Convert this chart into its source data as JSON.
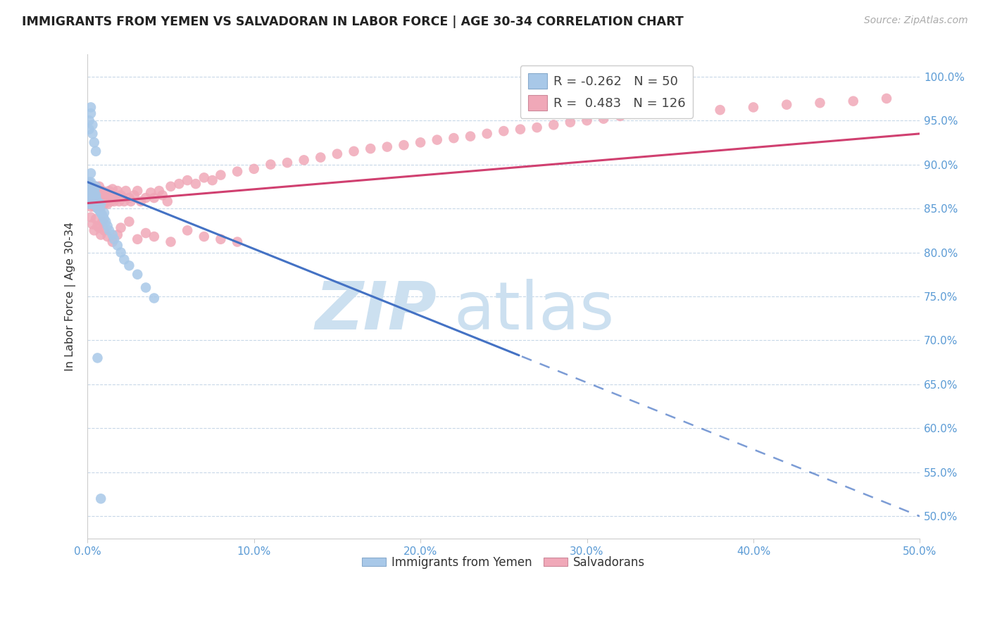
{
  "title": "IMMIGRANTS FROM YEMEN VS SALVADORAN IN LABOR FORCE | AGE 30-34 CORRELATION CHART",
  "source": "Source: ZipAtlas.com",
  "ylabel": "In Labor Force | Age 30-34",
  "xlim": [
    0.0,
    0.5
  ],
  "ylim": [
    0.475,
    1.025
  ],
  "xtick_labels": [
    "0.0%",
    "10.0%",
    "20.0%",
    "30.0%",
    "40.0%",
    "50.0%"
  ],
  "xtick_vals": [
    0.0,
    0.1,
    0.2,
    0.3,
    0.4,
    0.5
  ],
  "ytick_labels": [
    "50.0%",
    "55.0%",
    "60.0%",
    "65.0%",
    "70.0%",
    "75.0%",
    "80.0%",
    "85.0%",
    "90.0%",
    "95.0%",
    "100.0%"
  ],
  "ytick_vals": [
    0.5,
    0.55,
    0.6,
    0.65,
    0.7,
    0.75,
    0.8,
    0.85,
    0.9,
    0.95,
    1.0
  ],
  "legend_R1": "-0.262",
  "legend_N1": "50",
  "legend_R2": "0.483",
  "legend_N2": "126",
  "color_yemen": "#a8c8e8",
  "color_salvadoran": "#f0a8b8",
  "line_color_yemen": "#4472c4",
  "line_color_salvadoran": "#d04070",
  "watermark_color": "#cce0f0",
  "yemen_x": [
    0.001,
    0.001,
    0.001,
    0.001,
    0.001,
    0.002,
    0.002,
    0.002,
    0.002,
    0.003,
    0.003,
    0.003,
    0.004,
    0.004,
    0.004,
    0.005,
    0.005,
    0.005,
    0.005,
    0.006,
    0.006,
    0.007,
    0.007,
    0.008,
    0.008,
    0.009,
    0.01,
    0.01,
    0.011,
    0.012,
    0.013,
    0.015,
    0.016,
    0.018,
    0.02,
    0.022,
    0.025,
    0.03,
    0.035,
    0.04,
    0.001,
    0.001,
    0.002,
    0.002,
    0.003,
    0.003,
    0.004,
    0.005,
    0.006,
    0.008
  ],
  "yemen_y": [
    0.87,
    0.86,
    0.88,
    0.855,
    0.865,
    0.87,
    0.86,
    0.88,
    0.89,
    0.855,
    0.87,
    0.86,
    0.855,
    0.865,
    0.87,
    0.855,
    0.862,
    0.875,
    0.865,
    0.85,
    0.858,
    0.848,
    0.852,
    0.845,
    0.855,
    0.842,
    0.838,
    0.845,
    0.835,
    0.83,
    0.825,
    0.82,
    0.815,
    0.808,
    0.8,
    0.792,
    0.785,
    0.775,
    0.76,
    0.748,
    0.95,
    0.94,
    0.965,
    0.958,
    0.945,
    0.935,
    0.925,
    0.915,
    0.68,
    0.52
  ],
  "salv_x": [
    0.001,
    0.001,
    0.001,
    0.001,
    0.001,
    0.001,
    0.002,
    0.002,
    0.002,
    0.002,
    0.002,
    0.003,
    0.003,
    0.003,
    0.003,
    0.003,
    0.004,
    0.004,
    0.004,
    0.004,
    0.005,
    0.005,
    0.005,
    0.005,
    0.006,
    0.006,
    0.006,
    0.007,
    0.007,
    0.007,
    0.008,
    0.008,
    0.008,
    0.009,
    0.009,
    0.01,
    0.01,
    0.011,
    0.011,
    0.012,
    0.012,
    0.013,
    0.013,
    0.014,
    0.015,
    0.015,
    0.016,
    0.017,
    0.018,
    0.019,
    0.02,
    0.021,
    0.022,
    0.023,
    0.025,
    0.026,
    0.028,
    0.03,
    0.032,
    0.035,
    0.038,
    0.04,
    0.043,
    0.045,
    0.048,
    0.05,
    0.055,
    0.06,
    0.065,
    0.07,
    0.075,
    0.08,
    0.09,
    0.1,
    0.11,
    0.12,
    0.13,
    0.14,
    0.15,
    0.16,
    0.17,
    0.18,
    0.19,
    0.2,
    0.21,
    0.22,
    0.23,
    0.24,
    0.25,
    0.26,
    0.27,
    0.28,
    0.29,
    0.3,
    0.31,
    0.32,
    0.34,
    0.36,
    0.38,
    0.4,
    0.42,
    0.44,
    0.46,
    0.48,
    0.002,
    0.003,
    0.004,
    0.005,
    0.006,
    0.007,
    0.008,
    0.009,
    0.01,
    0.012,
    0.015,
    0.018,
    0.02,
    0.025,
    0.03,
    0.035,
    0.04,
    0.05,
    0.06,
    0.07,
    0.08,
    0.09
  ],
  "salv_y": [
    0.868,
    0.862,
    0.855,
    0.872,
    0.878,
    0.858,
    0.865,
    0.858,
    0.875,
    0.852,
    0.87,
    0.862,
    0.855,
    0.87,
    0.858,
    0.875,
    0.86,
    0.852,
    0.868,
    0.862,
    0.858,
    0.868,
    0.875,
    0.852,
    0.862,
    0.855,
    0.87,
    0.858,
    0.862,
    0.875,
    0.852,
    0.865,
    0.858,
    0.862,
    0.87,
    0.855,
    0.868,
    0.862,
    0.858,
    0.865,
    0.855,
    0.862,
    0.87,
    0.858,
    0.865,
    0.872,
    0.858,
    0.862,
    0.87,
    0.858,
    0.865,
    0.862,
    0.858,
    0.87,
    0.862,
    0.858,
    0.865,
    0.87,
    0.858,
    0.862,
    0.868,
    0.862,
    0.87,
    0.865,
    0.858,
    0.875,
    0.878,
    0.882,
    0.878,
    0.885,
    0.882,
    0.888,
    0.892,
    0.895,
    0.9,
    0.902,
    0.905,
    0.908,
    0.912,
    0.915,
    0.918,
    0.92,
    0.922,
    0.925,
    0.928,
    0.93,
    0.932,
    0.935,
    0.938,
    0.94,
    0.942,
    0.945,
    0.948,
    0.95,
    0.952,
    0.955,
    0.958,
    0.96,
    0.962,
    0.965,
    0.968,
    0.97,
    0.972,
    0.975,
    0.84,
    0.832,
    0.825,
    0.838,
    0.83,
    0.828,
    0.82,
    0.835,
    0.825,
    0.818,
    0.812,
    0.82,
    0.828,
    0.835,
    0.815,
    0.822,
    0.818,
    0.812,
    0.825,
    0.818,
    0.815,
    0.812
  ]
}
